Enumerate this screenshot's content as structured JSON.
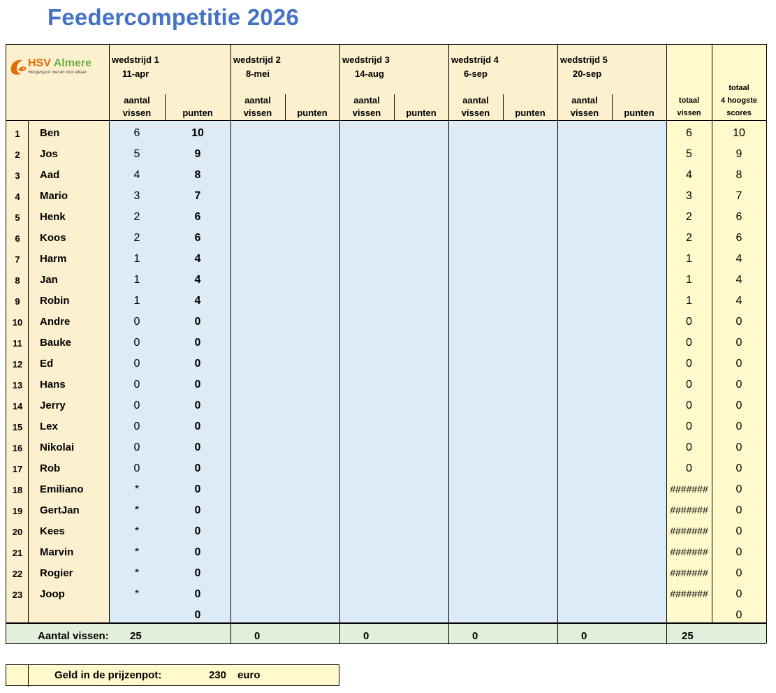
{
  "title": "Feedercompetitie 2026",
  "logo": {
    "hsv": "HSV",
    "almere": "Almere",
    "tagline": "Hengelsport met en voor elkaar",
    "icon": "fish-logo-icon"
  },
  "headers": {
    "matches": [
      {
        "label": "wedstrijd 1",
        "date": "11-apr"
      },
      {
        "label": "wedstrijd 2",
        "date": "8-mei"
      },
      {
        "label": "wedstrijd 3",
        "date": "14-aug"
      },
      {
        "label": "wedstrijd 4",
        "date": "6-sep"
      },
      {
        "label": "wedstrijd 5",
        "date": "20-sep"
      }
    ],
    "aantal": "aantal",
    "vissen": "vissen",
    "punten": "punten",
    "totaal": "totaal",
    "totaal_vissen_2": "vissen",
    "totaal_scores_1": "totaal",
    "totaal_scores_2": "4 hoogste",
    "totaal_scores_3": "scores"
  },
  "players": [
    {
      "rank": "1",
      "name": "Ben",
      "fish": "6",
      "points": "10",
      "total_fish": "6",
      "total_score": "10"
    },
    {
      "rank": "2",
      "name": "Jos",
      "fish": "5",
      "points": "9",
      "total_fish": "5",
      "total_score": "9"
    },
    {
      "rank": "3",
      "name": "Aad",
      "fish": "4",
      "points": "8",
      "total_fish": "4",
      "total_score": "8"
    },
    {
      "rank": "4",
      "name": "Mario",
      "fish": "3",
      "points": "7",
      "total_fish": "3",
      "total_score": "7"
    },
    {
      "rank": "5",
      "name": "Henk",
      "fish": "2",
      "points": "6",
      "total_fish": "2",
      "total_score": "6"
    },
    {
      "rank": "6",
      "name": "Koos",
      "fish": "2",
      "points": "6",
      "total_fish": "2",
      "total_score": "6"
    },
    {
      "rank": "7",
      "name": "Harm",
      "fish": "1",
      "points": "4",
      "total_fish": "1",
      "total_score": "4"
    },
    {
      "rank": "8",
      "name": "Jan",
      "fish": "1",
      "points": "4",
      "total_fish": "1",
      "total_score": "4"
    },
    {
      "rank": "9",
      "name": "Robin",
      "fish": "1",
      "points": "4",
      "total_fish": "1",
      "total_score": "4"
    },
    {
      "rank": "10",
      "name": "Andre",
      "fish": "0",
      "points": "0",
      "total_fish": "0",
      "total_score": "0"
    },
    {
      "rank": "11",
      "name": "Bauke",
      "fish": "0",
      "points": "0",
      "total_fish": "0",
      "total_score": "0"
    },
    {
      "rank": "12",
      "name": "Ed",
      "fish": "0",
      "points": "0",
      "total_fish": "0",
      "total_score": "0"
    },
    {
      "rank": "13",
      "name": "Hans",
      "fish": "0",
      "points": "0",
      "total_fish": "0",
      "total_score": "0"
    },
    {
      "rank": "14",
      "name": "Jerry",
      "fish": "0",
      "points": "0",
      "total_fish": "0",
      "total_score": "0"
    },
    {
      "rank": "15",
      "name": "Lex",
      "fish": "0",
      "points": "0",
      "total_fish": "0",
      "total_score": "0"
    },
    {
      "rank": "16",
      "name": "Nikolai",
      "fish": "0",
      "points": "0",
      "total_fish": "0",
      "total_score": "0"
    },
    {
      "rank": "17",
      "name": "Rob",
      "fish": "0",
      "points": "0",
      "total_fish": "0",
      "total_score": "0"
    },
    {
      "rank": "18",
      "name": "Emiliano",
      "fish": "*",
      "points": "0",
      "total_fish": "#######",
      "total_score": "0"
    },
    {
      "rank": "19",
      "name": "GertJan",
      "fish": "*",
      "points": "0",
      "total_fish": "#######",
      "total_score": "0"
    },
    {
      "rank": "20",
      "name": "Kees",
      "fish": "*",
      "points": "0",
      "total_fish": "#######",
      "total_score": "0"
    },
    {
      "rank": "21",
      "name": "Marvin",
      "fish": "*",
      "points": "0",
      "total_fish": "#######",
      "total_score": "0"
    },
    {
      "rank": "22",
      "name": "Rogier",
      "fish": "*",
      "points": "0",
      "total_fish": "#######",
      "total_score": "0"
    },
    {
      "rank": "23",
      "name": "Joop",
      "fish": "*",
      "points": "0",
      "total_fish": "#######",
      "total_score": "0"
    },
    {
      "rank": "",
      "name": "",
      "fish": "",
      "points": "0",
      "total_fish": "",
      "total_score": "0"
    }
  ],
  "totals": {
    "label": "Aantal vissen:",
    "match_totals": [
      "25",
      "0",
      "0",
      "0",
      "0"
    ],
    "grand_total": "25"
  },
  "prize": {
    "label": "Geld in de prijzenpot:",
    "amount": "230",
    "unit": "euro"
  },
  "colors": {
    "title": "#4472c4",
    "cream": "#fdf0cf",
    "blue": "#ddebf7",
    "yellow": "#fff9cc",
    "green": "#e2efda"
  }
}
